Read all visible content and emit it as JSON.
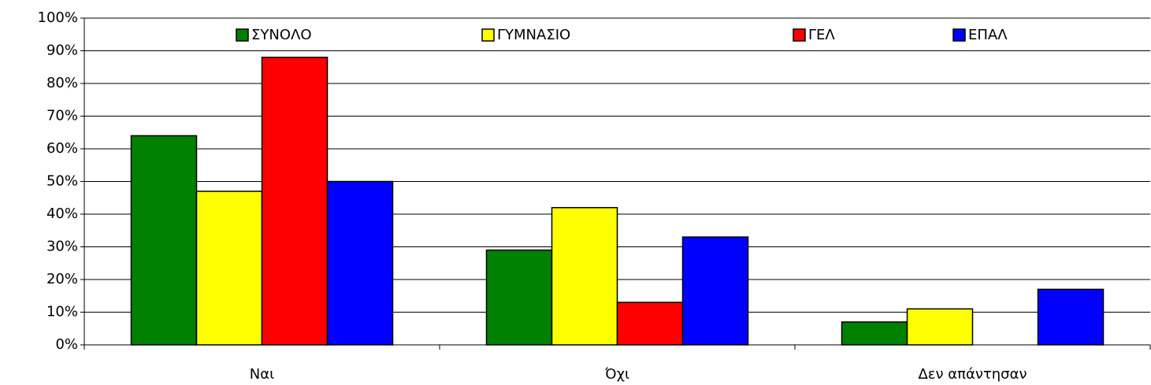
{
  "chart_data": {
    "type": "bar",
    "categories": [
      "Ναι",
      "Όχι",
      "Δεν απάντησαν"
    ],
    "series": [
      {
        "name": "ΣΥΝΟΛΟ",
        "color": "#008000",
        "values": [
          64,
          29,
          7
        ]
      },
      {
        "name": "ΓΥΜΝΑΣΙΟ",
        "color": "#ffff00",
        "values": [
          47,
          42,
          11
        ]
      },
      {
        "name": "ΓΕΛ",
        "color": "#ff0000",
        "values": [
          88,
          13,
          0
        ]
      },
      {
        "name": "ΕΠΑΛ",
        "color": "#0000ff",
        "values": [
          50,
          33,
          17
        ]
      }
    ],
    "ylim": [
      0,
      100
    ],
    "yticks": [
      {
        "value": 0,
        "label": "0%"
      },
      {
        "value": 10,
        "label": "10%"
      },
      {
        "value": 20,
        "label": "20%"
      },
      {
        "value": 30,
        "label": "30%"
      },
      {
        "value": 40,
        "label": "40%"
      },
      {
        "value": 50,
        "label": "50%"
      },
      {
        "value": 60,
        "label": "60%"
      },
      {
        "value": 70,
        "label": "70%"
      },
      {
        "value": 80,
        "label": "80%"
      },
      {
        "value": 90,
        "label": "90%"
      },
      {
        "value": 100,
        "label": "100%"
      }
    ],
    "grid": true,
    "legend": "top"
  }
}
